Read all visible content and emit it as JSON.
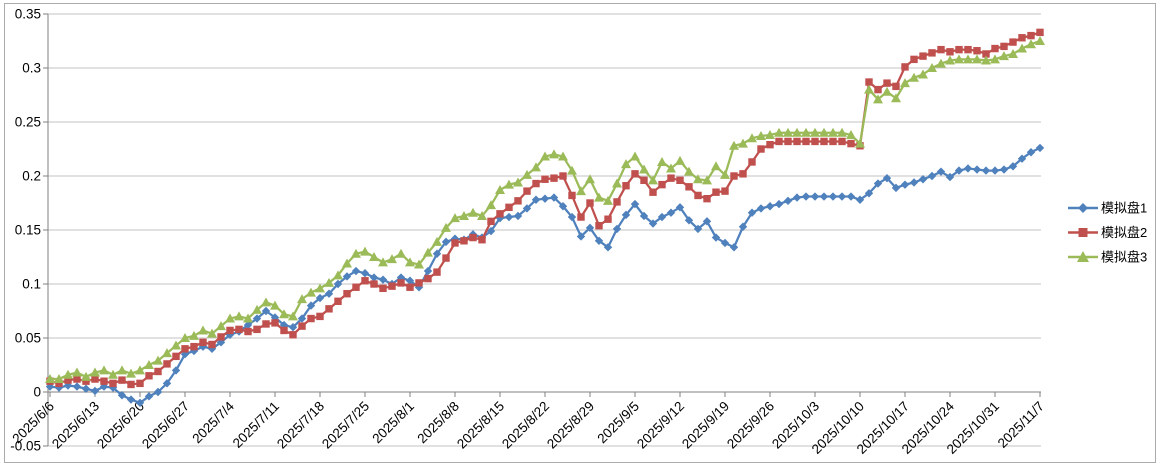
{
  "chart_data": {
    "type": "line",
    "title": "",
    "xlabel": "",
    "ylabel": "",
    "ylim": [
      -0.05,
      0.35
    ],
    "y_tick_step": 0.05,
    "y_tick_labels": [
      "0.35",
      "0.3",
      "0.25",
      "0.2",
      "0.15",
      "0.1",
      "0.05",
      "0",
      "-0.05"
    ],
    "grid": true,
    "legend_position": "right",
    "colors": {
      "grid": "#c3c3c3",
      "axis": "#808080",
      "text": "#000000",
      "background": "#ffffff",
      "border": "#ababab"
    },
    "x_tick_every": 5,
    "x_tick_labels": [
      "2025/6/6",
      "2025/6/13",
      "2025/6/20",
      "2025/6/27",
      "2025/7/4",
      "2025/7/11",
      "2025/7/18",
      "2025/7/25",
      "2025/8/1",
      "2025/8/8",
      "2025/8/15",
      "2025/8/22",
      "2025/8/29",
      "2025/9/5",
      "2025/9/12",
      "2025/9/19",
      "2025/9/26",
      "2025/10/3",
      "2025/10/10",
      "2025/10/17",
      "2025/10/24",
      "2025/10/31",
      "2025/11/7"
    ],
    "x": [
      "2025/6/6",
      "2025/6/9",
      "2025/6/10",
      "2025/6/11",
      "2025/6/12",
      "2025/6/13",
      "2025/6/16",
      "2025/6/17",
      "2025/6/18",
      "2025/6/19",
      "2025/6/20",
      "2025/6/23",
      "2025/6/24",
      "2025/6/25",
      "2025/6/26",
      "2025/6/27",
      "2025/6/30",
      "2025/7/1",
      "2025/7/2",
      "2025/7/3",
      "2025/7/4",
      "2025/7/7",
      "2025/7/8",
      "2025/7/9",
      "2025/7/10",
      "2025/7/11",
      "2025/7/14",
      "2025/7/15",
      "2025/7/16",
      "2025/7/17",
      "2025/7/18",
      "2025/7/21",
      "2025/7/22",
      "2025/7/23",
      "2025/7/24",
      "2025/7/25",
      "2025/7/28",
      "2025/7/29",
      "2025/7/30",
      "2025/7/31",
      "2025/8/1",
      "2025/8/4",
      "2025/8/5",
      "2025/8/6",
      "2025/8/7",
      "2025/8/8",
      "2025/8/11",
      "2025/8/12",
      "2025/8/13",
      "2025/8/14",
      "2025/8/15",
      "2025/8/18",
      "2025/8/19",
      "2025/8/20",
      "2025/8/21",
      "2025/8/22",
      "2025/8/25",
      "2025/8/26",
      "2025/8/27",
      "2025/8/28",
      "2025/8/29",
      "2025/9/1",
      "2025/9/2",
      "2025/9/3",
      "2025/9/4",
      "2025/9/5",
      "2025/9/8",
      "2025/9/9",
      "2025/9/10",
      "2025/9/11",
      "2025/9/12",
      "2025/9/15",
      "2025/9/16",
      "2025/9/17",
      "2025/9/18",
      "2025/9/19",
      "2025/9/22",
      "2025/9/23",
      "2025/9/24",
      "2025/9/25",
      "2025/9/26",
      "2025/9/29",
      "2025/9/30",
      "2025/10/1",
      "2025/10/2",
      "2025/10/3",
      "2025/10/6",
      "2025/10/7",
      "2025/10/8",
      "2025/10/9",
      "2025/10/10",
      "2025/10/13",
      "2025/10/14",
      "2025/10/15",
      "2025/10/16",
      "2025/10/17",
      "2025/10/20",
      "2025/10/21",
      "2025/10/22",
      "2025/10/23",
      "2025/10/24",
      "2025/10/27",
      "2025/10/28",
      "2025/10/29",
      "2025/10/30",
      "2025/10/31",
      "2025/11/3",
      "2025/11/4",
      "2025/11/5",
      "2025/11/6",
      "2025/11/7"
    ],
    "series": [
      {
        "name": "模拟盘1",
        "color": "#4F81BD",
        "marker": "diamond",
        "values": [
          0.005,
          0.004,
          0.006,
          0.005,
          0.003,
          0.001,
          0.005,
          0.004,
          -0.003,
          -0.007,
          -0.01,
          -0.004,
          0.0,
          0.008,
          0.02,
          0.035,
          0.038,
          0.042,
          0.04,
          0.046,
          0.053,
          0.056,
          0.062,
          0.068,
          0.075,
          0.069,
          0.062,
          0.06,
          0.068,
          0.08,
          0.087,
          0.091,
          0.1,
          0.107,
          0.112,
          0.11,
          0.106,
          0.104,
          0.1,
          0.106,
          0.103,
          0.097,
          0.112,
          0.128,
          0.139,
          0.142,
          0.141,
          0.146,
          0.143,
          0.149,
          0.161,
          0.162,
          0.163,
          0.17,
          0.178,
          0.179,
          0.18,
          0.172,
          0.162,
          0.144,
          0.152,
          0.14,
          0.134,
          0.151,
          0.164,
          0.174,
          0.163,
          0.156,
          0.162,
          0.166,
          0.171,
          0.159,
          0.151,
          0.158,
          0.143,
          0.138,
          0.134,
          0.153,
          0.166,
          0.17,
          0.172,
          0.174,
          0.177,
          0.18,
          0.181,
          0.181,
          0.181,
          0.181,
          0.181,
          0.181,
          0.178,
          0.184,
          0.193,
          0.198,
          0.189,
          0.192,
          0.194,
          0.197,
          0.2,
          0.204,
          0.199,
          0.205,
          0.207,
          0.206,
          0.205,
          0.205,
          0.206,
          0.209,
          0.216,
          0.222,
          0.226
        ]
      },
      {
        "name": "模拟盘2",
        "color": "#C0504D",
        "marker": "square",
        "values": [
          0.01,
          0.008,
          0.011,
          0.012,
          0.01,
          0.012,
          0.01,
          0.008,
          0.011,
          0.007,
          0.008,
          0.015,
          0.019,
          0.026,
          0.033,
          0.04,
          0.042,
          0.046,
          0.044,
          0.051,
          0.057,
          0.058,
          0.056,
          0.058,
          0.063,
          0.064,
          0.057,
          0.053,
          0.061,
          0.068,
          0.07,
          0.077,
          0.084,
          0.091,
          0.097,
          0.103,
          0.1,
          0.096,
          0.098,
          0.101,
          0.097,
          0.101,
          0.105,
          0.111,
          0.124,
          0.138,
          0.14,
          0.143,
          0.141,
          0.158,
          0.165,
          0.171,
          0.177,
          0.186,
          0.193,
          0.197,
          0.198,
          0.2,
          0.182,
          0.162,
          0.175,
          0.154,
          0.16,
          0.176,
          0.191,
          0.202,
          0.196,
          0.185,
          0.192,
          0.198,
          0.196,
          0.19,
          0.182,
          0.179,
          0.185,
          0.186,
          0.2,
          0.202,
          0.213,
          0.225,
          0.229,
          0.232,
          0.232,
          0.232,
          0.232,
          0.232,
          0.232,
          0.232,
          0.232,
          0.23,
          0.228,
          0.287,
          0.28,
          0.286,
          0.283,
          0.301,
          0.308,
          0.311,
          0.314,
          0.317,
          0.315,
          0.317,
          0.317,
          0.316,
          0.313,
          0.318,
          0.32,
          0.324,
          0.328,
          0.33,
          0.333
        ]
      },
      {
        "name": "模拟盘3",
        "color": "#9BBB59",
        "marker": "triangle",
        "values": [
          0.012,
          0.012,
          0.016,
          0.018,
          0.014,
          0.018,
          0.02,
          0.016,
          0.02,
          0.017,
          0.02,
          0.025,
          0.029,
          0.036,
          0.043,
          0.05,
          0.052,
          0.057,
          0.054,
          0.061,
          0.068,
          0.07,
          0.068,
          0.076,
          0.083,
          0.08,
          0.072,
          0.07,
          0.086,
          0.092,
          0.096,
          0.101,
          0.108,
          0.119,
          0.128,
          0.13,
          0.125,
          0.12,
          0.123,
          0.128,
          0.12,
          0.118,
          0.129,
          0.139,
          0.152,
          0.161,
          0.163,
          0.166,
          0.163,
          0.173,
          0.187,
          0.192,
          0.194,
          0.201,
          0.208,
          0.218,
          0.22,
          0.218,
          0.205,
          0.186,
          0.197,
          0.18,
          0.177,
          0.193,
          0.211,
          0.218,
          0.206,
          0.196,
          0.213,
          0.207,
          0.214,
          0.204,
          0.197,
          0.196,
          0.209,
          0.201,
          0.228,
          0.23,
          0.235,
          0.237,
          0.238,
          0.24,
          0.24,
          0.24,
          0.24,
          0.24,
          0.24,
          0.24,
          0.24,
          0.238,
          0.23,
          0.28,
          0.271,
          0.278,
          0.272,
          0.286,
          0.291,
          0.294,
          0.3,
          0.304,
          0.307,
          0.308,
          0.308,
          0.308,
          0.307,
          0.308,
          0.311,
          0.313,
          0.318,
          0.322,
          0.325
        ]
      }
    ]
  },
  "legend": {
    "items": [
      "模拟盘1",
      "模拟盘2",
      "模拟盘3"
    ]
  }
}
